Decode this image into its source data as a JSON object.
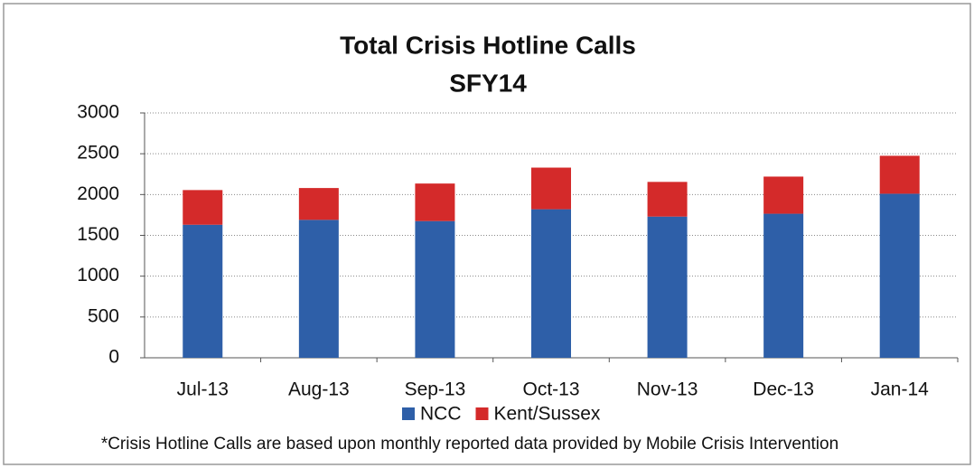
{
  "chart_data": {
    "type": "stacked_bar",
    "title": "Total Crisis Hotline Calls",
    "subtitle": "SFY14",
    "categories": [
      "Jul-13",
      "Aug-13",
      "Sep-13",
      "Oct-13",
      "Nov-13",
      "Dec-13",
      "Jan-14"
    ],
    "series": [
      {
        "name": "NCC",
        "color": "#2e5fa8",
        "values": [
          1630,
          1690,
          1675,
          1820,
          1730,
          1765,
          2010
        ]
      },
      {
        "name": "Kent/Sussex",
        "color": "#d42a2a",
        "values": [
          425,
          390,
          460,
          510,
          425,
          455,
          465
        ]
      }
    ],
    "ylim": [
      0,
      3000
    ],
    "yticks": [
      0,
      500,
      1000,
      1500,
      2000,
      2500,
      3000
    ],
    "grid": true,
    "legend": "bottom",
    "footnote": "*Crisis Hotline Calls are based upon monthly reported data provided by Mobile Crisis Intervention"
  }
}
